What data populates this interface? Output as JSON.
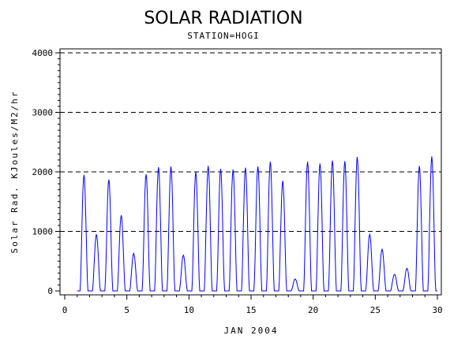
{
  "chart_data": {
    "type": "line",
    "title": "SOLAR RADIATION",
    "subtitle": "STATION=HOGI",
    "xlabel": "JAN 2004",
    "ylabel": "Solar Rad. KJoules/M2/hr",
    "xlim": [
      0,
      30
    ],
    "ylim": [
      0,
      4000
    ],
    "x_ticks": [
      0,
      5,
      10,
      15,
      20,
      25,
      30
    ],
    "y_ticks": [
      0,
      1000,
      2000,
      3000,
      4000
    ],
    "grid": "horizontal-dashed",
    "line_color": "#0000ff",
    "series": [
      {
        "values_description": "hourly data, daily peaks near local noon",
        "daily_peaks": [
          {
            "day": 1.55,
            "peak": 1950
          },
          {
            "day": 2.55,
            "peak": 950
          },
          {
            "day": 3.55,
            "peak": 1870
          },
          {
            "day": 4.55,
            "peak": 1270
          },
          {
            "day": 5.55,
            "peak": 630
          },
          {
            "day": 6.55,
            "peak": 1960
          },
          {
            "day": 7.55,
            "peak": 2080
          },
          {
            "day": 8.55,
            "peak": 2090
          },
          {
            "day": 9.55,
            "peak": 600
          },
          {
            "day": 10.55,
            "peak": 2000
          },
          {
            "day": 11.55,
            "peak": 2100
          },
          {
            "day": 12.55,
            "peak": 2050
          },
          {
            "day": 13.55,
            "peak": 2040
          },
          {
            "day": 14.55,
            "peak": 2070
          },
          {
            "day": 15.55,
            "peak": 2090
          },
          {
            "day": 16.55,
            "peak": 2170
          },
          {
            "day": 17.55,
            "peak": 1850
          },
          {
            "day": 18.55,
            "peak": 200
          },
          {
            "day": 19.55,
            "peak": 2170
          },
          {
            "day": 20.55,
            "peak": 2140
          },
          {
            "day": 21.55,
            "peak": 2190
          },
          {
            "day": 22.55,
            "peak": 2180
          },
          {
            "day": 23.55,
            "peak": 2250
          },
          {
            "day": 24.55,
            "peak": 950
          },
          {
            "day": 25.55,
            "peak": 700
          },
          {
            "day": 26.55,
            "peak": 280
          },
          {
            "day": 27.55,
            "peak": 380
          },
          {
            "day": 28.55,
            "peak": 2100
          },
          {
            "day": 29.55,
            "peak": 2260
          }
        ]
      }
    ]
  }
}
